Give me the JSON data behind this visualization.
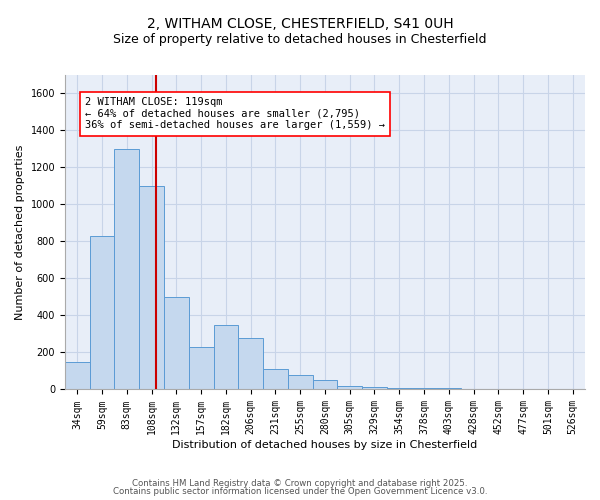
{
  "title_line1": "2, WITHAM CLOSE, CHESTERFIELD, S41 0UH",
  "title_line2": "Size of property relative to detached houses in Chesterfield",
  "xlabel": "Distribution of detached houses by size in Chesterfield",
  "ylabel": "Number of detached properties",
  "categories": [
    "34sqm",
    "59sqm",
    "83sqm",
    "108sqm",
    "132sqm",
    "157sqm",
    "182sqm",
    "206sqm",
    "231sqm",
    "255sqm",
    "280sqm",
    "305sqm",
    "329sqm",
    "354sqm",
    "378sqm",
    "403sqm",
    "428sqm",
    "452sqm",
    "477sqm",
    "501sqm",
    "526sqm"
  ],
  "values": [
    150,
    830,
    1300,
    1100,
    500,
    230,
    350,
    280,
    110,
    80,
    50,
    20,
    15,
    10,
    8,
    6,
    4,
    3,
    2,
    1,
    1
  ],
  "bar_color": "#c5d8ee",
  "bar_edge_color": "#5b9bd5",
  "red_line_index": 3,
  "red_line_color": "#cc0000",
  "annotation_text": "2 WITHAM CLOSE: 119sqm\n← 64% of detached houses are smaller (2,795)\n36% of semi-detached houses are larger (1,559) →",
  "ylim": [
    0,
    1700
  ],
  "yticks": [
    0,
    200,
    400,
    600,
    800,
    1000,
    1200,
    1400,
    1600
  ],
  "grid_color": "#c8d4e8",
  "background_color": "#e8eef8",
  "footer_line1": "Contains HM Land Registry data © Crown copyright and database right 2025.",
  "footer_line2": "Contains public sector information licensed under the Open Government Licence v3.0.",
  "title_fontsize": 10,
  "subtitle_fontsize": 9,
  "axis_label_fontsize": 8,
  "tick_fontsize": 7,
  "annotation_fontsize": 7.5
}
